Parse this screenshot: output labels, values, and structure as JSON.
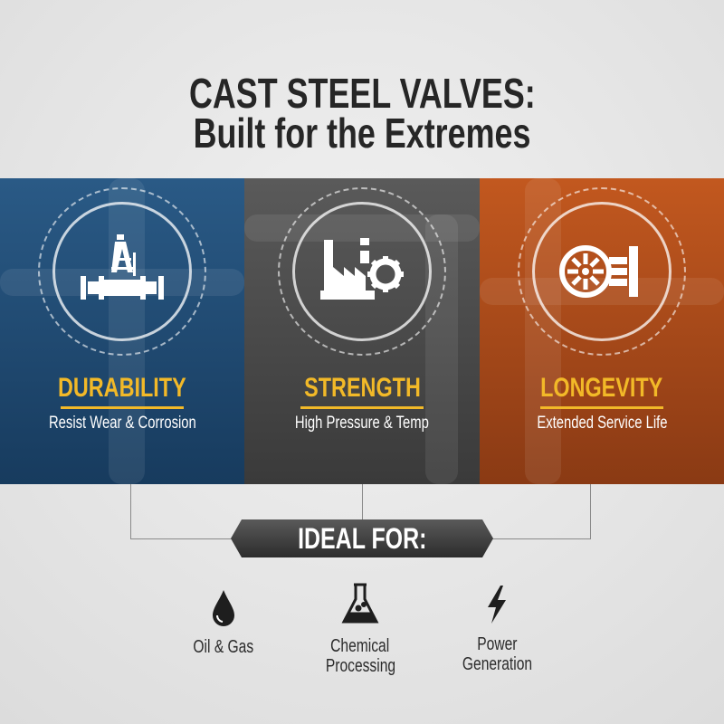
{
  "title": {
    "line1": "CAST STEEL VALVES:",
    "line2": "Built for the Extremes"
  },
  "panels": [
    {
      "heading": "DURABILITY",
      "subtitle": "Resist Wear & Corrosion",
      "icon": "oil-derrick-pipeline-icon",
      "color": "#1f4a73"
    },
    {
      "heading": "STRENGTH",
      "subtitle": "High Pressure & Temp",
      "icon": "factory-gear-icon",
      "color": "#4a4a4a"
    },
    {
      "heading": "LONGEVITY",
      "subtitle": "Extended Service Life",
      "icon": "valve-wheel-icon",
      "color": "#a64a1a"
    }
  ],
  "ideal_for": {
    "label": "IDEAL FOR:",
    "items": [
      {
        "label": "Oil & Gas",
        "icon": "oil-drop-icon"
      },
      {
        "label": "Chemical",
        "label2": "Processing",
        "icon": "flask-icon"
      },
      {
        "label": "Power",
        "label2": "Generation",
        "icon": "lightning-bolt-icon"
      }
    ]
  },
  "colors": {
    "accent": "#f2b928",
    "text": "#262626"
  }
}
